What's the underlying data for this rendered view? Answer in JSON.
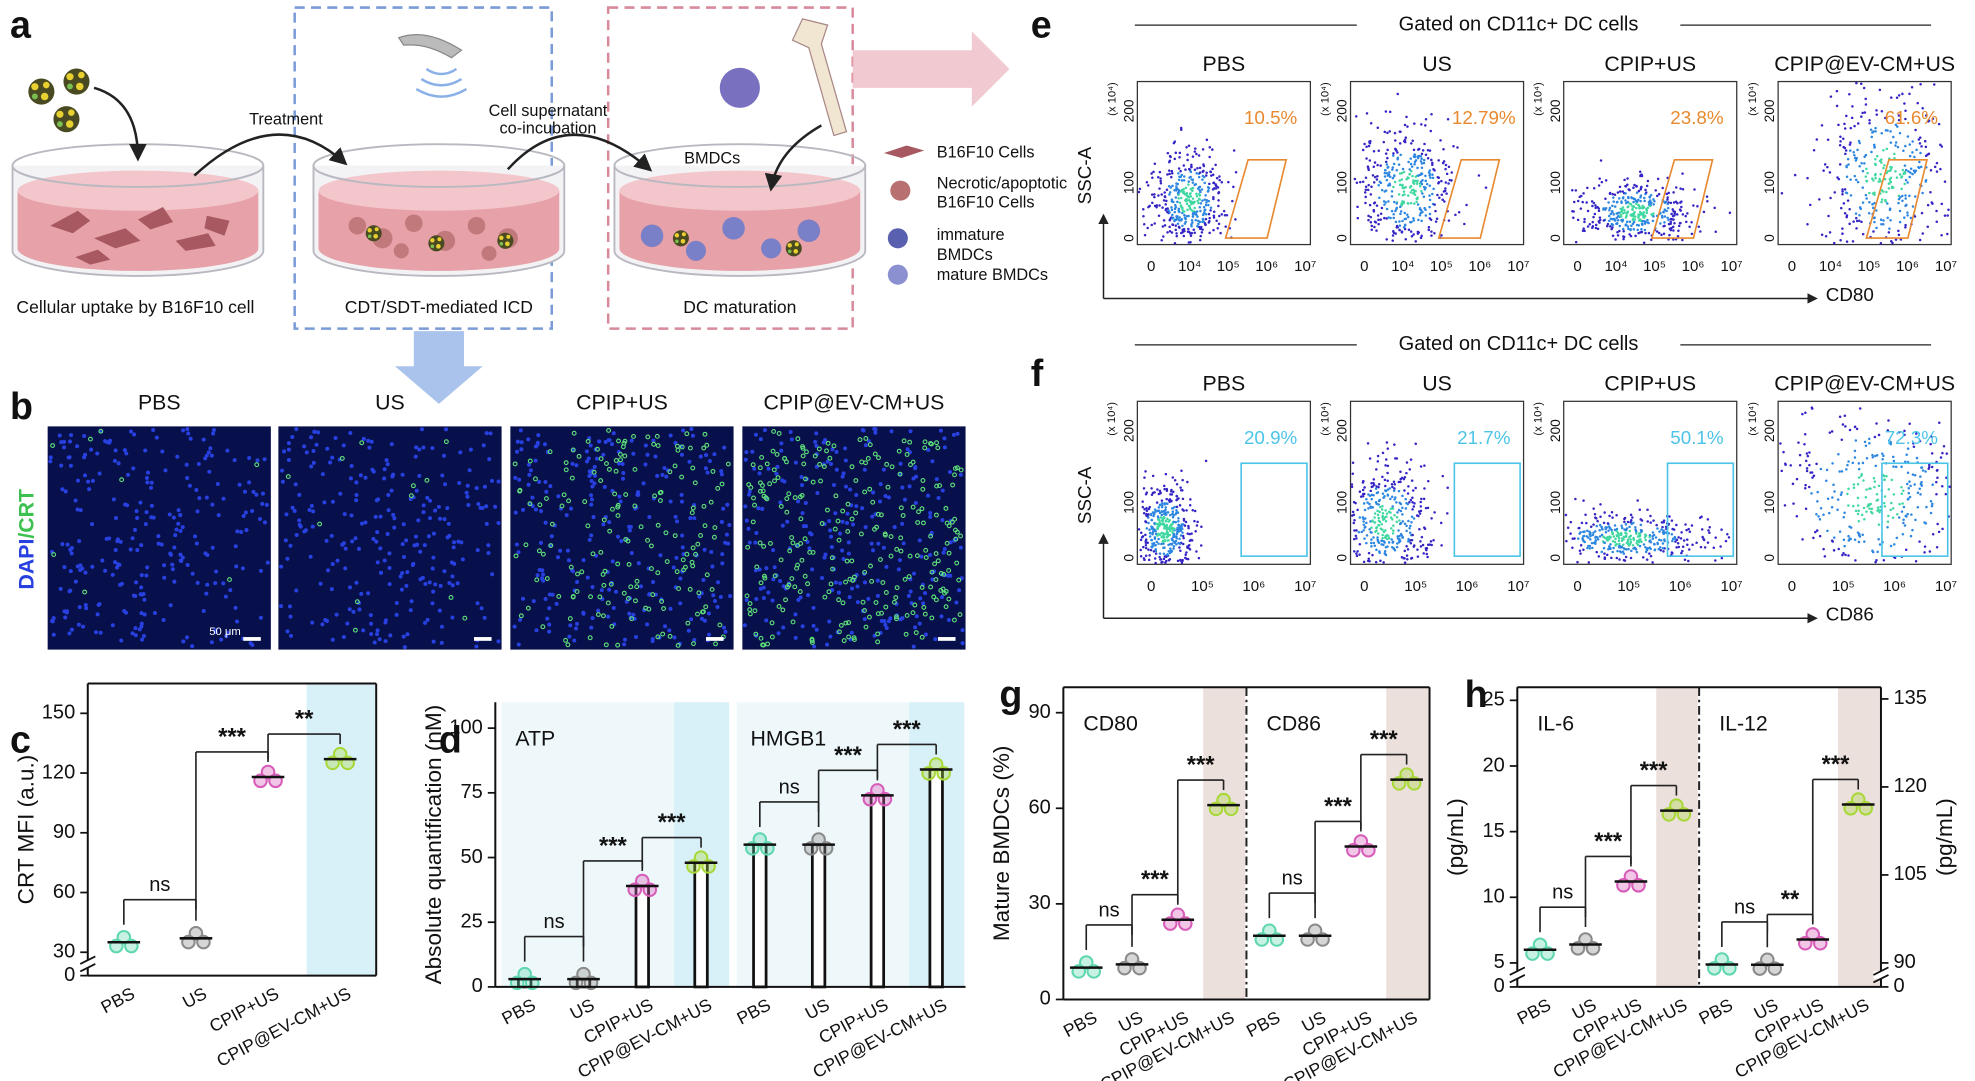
{
  "panel_labels": [
    "a",
    "b",
    "c",
    "d",
    "e",
    "f",
    "g",
    "h"
  ],
  "schematic": {
    "captions": [
      "Cellular uptake by B16F10 cell",
      "CDT/SDT-mediated ICD",
      "DC maturation"
    ],
    "treatment": "Treatment",
    "coincubation": [
      "Cell supernatant",
      "co-incubation"
    ],
    "bmdcs": "BMDCs",
    "legend": [
      [
        "B16F10 Cells"
      ],
      [
        "Necrotic/apoptotic",
        "B16F10 Cells"
      ],
      [
        "immature",
        "BMDCs"
      ],
      [
        "mature BMDCs"
      ]
    ]
  },
  "micrographs": {
    "groups": [
      "PBS",
      "US",
      "CPIP+US",
      "CPIP@EV-CM+US"
    ],
    "stain": [
      "DAPI",
      "/CRT"
    ],
    "scale_bar": "50 μm"
  },
  "flow": [
    {
      "header": "Gated on CD11c+ DC cells",
      "groups": [
        "PBS",
        "US",
        "CPIP+US",
        "CPIP@EV-CM+US"
      ],
      "percents": [
        "10.5%",
        "12.79%",
        "23.8%",
        "61.6%"
      ],
      "ylabel": "SSC-A",
      "yunit": "(x 10⁴)",
      "yticks": [
        "0",
        "100",
        "200"
      ],
      "xticks": [
        "0",
        "10⁴",
        "10⁵",
        "10⁶",
        "10⁷"
      ],
      "xlabel": "CD80",
      "color": "#e8892f"
    },
    {
      "header": "Gated on CD11c+ DC cells",
      "groups": [
        "PBS",
        "US",
        "CPIP+US",
        "CPIP@EV-CM+US"
      ],
      "percents": [
        "20.9%",
        "21.7%",
        "50.1%",
        "72.3%"
      ],
      "ylabel": "SSC-A",
      "yunit": "(x 10⁴)",
      "yticks": [
        "0",
        "100",
        "200"
      ],
      "xticks": [
        "0",
        "10⁵",
        "10⁶",
        "10⁷"
      ],
      "xlabel": "CD86",
      "color": "#4cc4e8"
    }
  ],
  "chart_data": [
    {
      "type": "dot",
      "ylabel": "CRT MFI (a.u.)",
      "categories": [
        "PBS",
        "US",
        "CPIP+US",
        "CPIP@EV-CM+US"
      ],
      "groups": [
        {
          "values": [
            35,
            37,
            118,
            127
          ],
          "significance": [
            {
              "pair": [
                0,
                1
              ],
              "label": "ns"
            },
            {
              "pair": [
                1,
                2
              ],
              "label": "***"
            },
            {
              "pair": [
                2,
                3
              ],
              "label": "**"
            }
          ]
        }
      ],
      "ylim": [
        0,
        165
      ],
      "yticks": [
        0,
        30,
        60,
        90,
        120,
        150
      ],
      "axis_break": [
        0,
        30
      ],
      "frame": true,
      "colors": [
        "#5ed6b0",
        "#8a8a8a",
        "#d65cb8",
        "#a8d838"
      ],
      "highlight_color": "#d8f0f7"
    },
    {
      "type": "bar",
      "ylabel": "Absolute quantification (nM)",
      "categories": [
        "PBS",
        "US",
        "CPIP+US",
        "CPIP@EV-CM+US"
      ],
      "groups": [
        {
          "name": "ATP",
          "values": [
            3,
            3,
            39,
            48
          ],
          "significance": [
            {
              "pair": [
                0,
                1
              ],
              "label": "ns"
            },
            {
              "pair": [
                1,
                2
              ],
              "label": "***"
            },
            {
              "pair": [
                2,
                3
              ],
              "label": "***"
            }
          ]
        },
        {
          "name": "HMGB1",
          "values": [
            55,
            55,
            74,
            84
          ],
          "significance": [
            {
              "pair": [
                0,
                1
              ],
              "label": "ns"
            },
            {
              "pair": [
                1,
                2
              ],
              "label": "***"
            },
            {
              "pair": [
                2,
                3
              ],
              "label": "***"
            }
          ]
        }
      ],
      "ylim": [
        0,
        110
      ],
      "yticks": [
        0,
        25,
        50,
        75,
        100
      ],
      "colors": [
        "#5ed6b0",
        "#8a8a8a",
        "#d65cb8",
        "#a8d838"
      ],
      "background_color": "#eef8fb",
      "highlight_color": "#d8f0f7"
    },
    {
      "type": "dot",
      "ylabel": "Mature BMDCs (%)",
      "categories": [
        "PBS",
        "US",
        "CPIP+US",
        "CPIP@EV-CM+US"
      ],
      "groups": [
        {
          "name": "CD80",
          "values": [
            10,
            11,
            25,
            61
          ],
          "significance": [
            {
              "pair": [
                0,
                1
              ],
              "label": "ns"
            },
            {
              "pair": [
                1,
                2
              ],
              "label": "***"
            },
            {
              "pair": [
                2,
                3
              ],
              "label": "***"
            }
          ]
        },
        {
          "name": "CD86",
          "values": [
            20,
            20,
            48,
            69
          ],
          "significance": [
            {
              "pair": [
                0,
                1
              ],
              "label": "ns"
            },
            {
              "pair": [
                1,
                2
              ],
              "label": "***"
            },
            {
              "pair": [
                2,
                3
              ],
              "label": "***"
            }
          ]
        }
      ],
      "ylim": [
        0,
        98
      ],
      "yticks": [
        0,
        30,
        60,
        90
      ],
      "frame": true,
      "divider": true,
      "colors": [
        "#5ed6b0",
        "#8a8a8a",
        "#d65cb8",
        "#a8d838"
      ],
      "highlight_color": "#ece0dc"
    },
    {
      "type": "dot",
      "ylabel": "(pg/mL)",
      "y2label": "(pg/mL)",
      "categories": [
        "PBS",
        "US",
        "CPIP+US",
        "CPIP@EV-CM+US"
      ],
      "groups": [
        {
          "name": "IL-6",
          "values": [
            6,
            6.4,
            11.2,
            16.6
          ],
          "significance": [
            {
              "pair": [
                0,
                1
              ],
              "label": "ns"
            },
            {
              "pair": [
                1,
                2
              ],
              "label": "***"
            },
            {
              "pair": [
                2,
                3
              ],
              "label": "***"
            }
          ]
        },
        {
          "name": "IL-12",
          "axis": "y2",
          "values": [
            84,
            83,
            94,
            117
          ],
          "significance": [
            {
              "pair": [
                0,
                1
              ],
              "label": "ns"
            },
            {
              "pair": [
                1,
                2
              ],
              "label": "**"
            },
            {
              "pair": [
                2,
                3
              ],
              "label": "***"
            }
          ]
        }
      ],
      "ylim": [
        0,
        26
      ],
      "yticks": [
        0,
        5,
        10,
        15,
        20,
        25
      ],
      "axis_break": [
        0,
        5
      ],
      "y2lim": [
        0,
        137
      ],
      "y2ticks": [
        0,
        90,
        105,
        120,
        135
      ],
      "y2_break": [
        0,
        90
      ],
      "frame": true,
      "divider": true,
      "colors": [
        "#5ed6b0",
        "#8a8a8a",
        "#d65cb8",
        "#a8d838"
      ],
      "highlight_color": "#ece0dc"
    }
  ]
}
